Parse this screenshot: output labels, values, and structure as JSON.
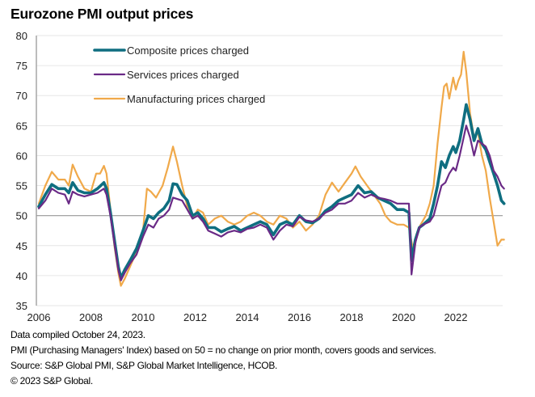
{
  "title": "Eurozone PMI output prices",
  "footnotes": [
    "Data compiled October 24, 2023.",
    "PMI (Purchasing Managers' Index) based on 50 = no change on prior month, covers goods and services.",
    "Source: S&P Global PMI, S&P Global Market Intelligence, HCOB.",
    "© 2023 S&P Global."
  ],
  "chart_data": {
    "type": "line",
    "title": "Eurozone PMI output prices",
    "xlabel": "",
    "ylabel": "",
    "ylim": [
      35,
      80
    ],
    "yticks": [
      35,
      40,
      45,
      50,
      55,
      60,
      65,
      70,
      75,
      80
    ],
    "xlim": [
      2006,
      2023.85
    ],
    "xticks": [
      "2006",
      "2008",
      "2010",
      "2012",
      "2014",
      "2016",
      "2018",
      "2020",
      "2022"
    ],
    "reference_line": 50,
    "grid": true,
    "legend": "top-left",
    "series": [
      {
        "name": "Composite prices charged",
        "color": "#0f6e80",
        "width": "thick",
        "points": [
          [
            2006.0,
            51.5
          ],
          [
            2006.25,
            53.5
          ],
          [
            2006.5,
            55.2
          ],
          [
            2006.75,
            54.5
          ],
          [
            2007.0,
            54.5
          ],
          [
            2007.15,
            53.8
          ],
          [
            2007.3,
            55.5
          ],
          [
            2007.5,
            54.2
          ],
          [
            2007.75,
            53.8
          ],
          [
            2008.0,
            53.8
          ],
          [
            2008.25,
            54.5
          ],
          [
            2008.5,
            55.5
          ],
          [
            2008.6,
            54.5
          ],
          [
            2008.75,
            50.5
          ],
          [
            2008.9,
            46
          ],
          [
            2009.05,
            41.5
          ],
          [
            2009.15,
            39.6
          ],
          [
            2009.3,
            41
          ],
          [
            2009.5,
            42.5
          ],
          [
            2009.75,
            44.5
          ],
          [
            2010.0,
            47.5
          ],
          [
            2010.2,
            50
          ],
          [
            2010.4,
            49.5
          ],
          [
            2010.6,
            50.5
          ],
          [
            2010.8,
            51.2
          ],
          [
            2011.0,
            52.5
          ],
          [
            2011.15,
            55.3
          ],
          [
            2011.3,
            55.2
          ],
          [
            2011.5,
            53.5
          ],
          [
            2011.7,
            52.5
          ],
          [
            2011.9,
            50
          ],
          [
            2012.1,
            50.5
          ],
          [
            2012.3,
            49.5
          ],
          [
            2012.5,
            48
          ],
          [
            2012.75,
            48
          ],
          [
            2013.0,
            47.3
          ],
          [
            2013.25,
            47.8
          ],
          [
            2013.5,
            48.2
          ],
          [
            2013.75,
            47.5
          ],
          [
            2014.0,
            48
          ],
          [
            2014.25,
            48.5
          ],
          [
            2014.5,
            49
          ],
          [
            2014.75,
            48.5
          ],
          [
            2015.0,
            46.8
          ],
          [
            2015.25,
            48.5
          ],
          [
            2015.5,
            49
          ],
          [
            2015.75,
            48.5
          ],
          [
            2016.0,
            50
          ],
          [
            2016.25,
            49
          ],
          [
            2016.5,
            48.8
          ],
          [
            2016.75,
            49.5
          ],
          [
            2017.0,
            50.8
          ],
          [
            2017.25,
            51.5
          ],
          [
            2017.5,
            52.5
          ],
          [
            2017.75,
            53
          ],
          [
            2018.0,
            53.5
          ],
          [
            2018.25,
            55
          ],
          [
            2018.5,
            53.8
          ],
          [
            2018.75,
            54
          ],
          [
            2019.0,
            53
          ],
          [
            2019.25,
            52.5
          ],
          [
            2019.5,
            52
          ],
          [
            2019.75,
            51
          ],
          [
            2020.0,
            51
          ],
          [
            2020.2,
            50.5
          ],
          [
            2020.3,
            42.5
          ],
          [
            2020.45,
            46
          ],
          [
            2020.6,
            48
          ],
          [
            2020.75,
            48.5
          ],
          [
            2021.0,
            49.5
          ],
          [
            2021.15,
            52
          ],
          [
            2021.3,
            55
          ],
          [
            2021.45,
            59
          ],
          [
            2021.6,
            58
          ],
          [
            2021.75,
            60
          ],
          [
            2021.9,
            61.5
          ],
          [
            2022.0,
            60.5
          ],
          [
            2022.15,
            62.5
          ],
          [
            2022.3,
            66
          ],
          [
            2022.4,
            68.5
          ],
          [
            2022.55,
            66
          ],
          [
            2022.7,
            62.5
          ],
          [
            2022.85,
            64.5
          ],
          [
            2023.0,
            62
          ],
          [
            2023.15,
            61
          ],
          [
            2023.3,
            59
          ],
          [
            2023.45,
            57
          ],
          [
            2023.6,
            55
          ],
          [
            2023.75,
            52.5
          ],
          [
            2023.85,
            52
          ]
        ]
      },
      {
        "name": "Services prices charged",
        "color": "#6a2a86",
        "width": "normal",
        "points": [
          [
            2006.0,
            51.2
          ],
          [
            2006.25,
            52.5
          ],
          [
            2006.5,
            54.5
          ],
          [
            2006.75,
            53.8
          ],
          [
            2007.0,
            53.5
          ],
          [
            2007.15,
            52
          ],
          [
            2007.3,
            54
          ],
          [
            2007.5,
            53.5
          ],
          [
            2007.75,
            53.2
          ],
          [
            2008.0,
            53.5
          ],
          [
            2008.25,
            53.8
          ],
          [
            2008.5,
            54.5
          ],
          [
            2008.6,
            53.5
          ],
          [
            2008.75,
            50
          ],
          [
            2008.9,
            45.5
          ],
          [
            2009.05,
            41
          ],
          [
            2009.15,
            39.2
          ],
          [
            2009.3,
            40.5
          ],
          [
            2009.5,
            42
          ],
          [
            2009.75,
            43.5
          ],
          [
            2010.0,
            46.5
          ],
          [
            2010.2,
            48.5
          ],
          [
            2010.4,
            48
          ],
          [
            2010.6,
            49.5
          ],
          [
            2010.8,
            50
          ],
          [
            2011.0,
            51
          ],
          [
            2011.15,
            53
          ],
          [
            2011.3,
            52.8
          ],
          [
            2011.5,
            52.5
          ],
          [
            2011.7,
            51
          ],
          [
            2011.9,
            49.5
          ],
          [
            2012.1,
            50
          ],
          [
            2012.3,
            49
          ],
          [
            2012.5,
            47.5
          ],
          [
            2012.75,
            47
          ],
          [
            2013.0,
            46.5
          ],
          [
            2013.25,
            47.2
          ],
          [
            2013.5,
            47.5
          ],
          [
            2013.75,
            47.2
          ],
          [
            2014.0,
            47.8
          ],
          [
            2014.25,
            48
          ],
          [
            2014.5,
            48.5
          ],
          [
            2014.75,
            48
          ],
          [
            2015.0,
            46
          ],
          [
            2015.25,
            47.5
          ],
          [
            2015.5,
            48.5
          ],
          [
            2015.75,
            48.2
          ],
          [
            2016.0,
            49.8
          ],
          [
            2016.25,
            49.2
          ],
          [
            2016.5,
            49
          ],
          [
            2016.75,
            49.5
          ],
          [
            2017.0,
            50.5
          ],
          [
            2017.25,
            51
          ],
          [
            2017.5,
            52
          ],
          [
            2017.75,
            52
          ],
          [
            2018.0,
            52.5
          ],
          [
            2018.25,
            53.8
          ],
          [
            2018.5,
            53
          ],
          [
            2018.75,
            53.5
          ],
          [
            2019.0,
            53
          ],
          [
            2019.25,
            52.8
          ],
          [
            2019.5,
            52.5
          ],
          [
            2019.75,
            52
          ],
          [
            2020.0,
            52
          ],
          [
            2020.2,
            52
          ],
          [
            2020.3,
            40.2
          ],
          [
            2020.45,
            45.5
          ],
          [
            2020.6,
            48
          ],
          [
            2020.75,
            48.5
          ],
          [
            2021.0,
            49
          ],
          [
            2021.15,
            50
          ],
          [
            2021.3,
            52.5
          ],
          [
            2021.45,
            55
          ],
          [
            2021.6,
            55.5
          ],
          [
            2021.75,
            57
          ],
          [
            2021.9,
            58
          ],
          [
            2022.0,
            57.5
          ],
          [
            2022.15,
            60
          ],
          [
            2022.3,
            63
          ],
          [
            2022.4,
            65
          ],
          [
            2022.55,
            63
          ],
          [
            2022.7,
            60
          ],
          [
            2022.85,
            62.5
          ],
          [
            2023.0,
            62
          ],
          [
            2023.15,
            61.5
          ],
          [
            2023.3,
            60
          ],
          [
            2023.45,
            57.5
          ],
          [
            2023.6,
            56.5
          ],
          [
            2023.75,
            55
          ],
          [
            2023.85,
            54.5
          ]
        ]
      },
      {
        "name": "Manufacturing prices charged",
        "color": "#f0a94a",
        "width": "normal",
        "points": [
          [
            2006.0,
            52
          ],
          [
            2006.25,
            55
          ],
          [
            2006.5,
            57.3
          ],
          [
            2006.75,
            56
          ],
          [
            2007.0,
            56
          ],
          [
            2007.15,
            55
          ],
          [
            2007.3,
            58.5
          ],
          [
            2007.5,
            56.5
          ],
          [
            2007.75,
            54.5
          ],
          [
            2008.0,
            54
          ],
          [
            2008.2,
            57
          ],
          [
            2008.35,
            57
          ],
          [
            2008.5,
            58.3
          ],
          [
            2008.6,
            57
          ],
          [
            2008.75,
            51
          ],
          [
            2008.9,
            45
          ],
          [
            2009.05,
            40.5
          ],
          [
            2009.15,
            38.3
          ],
          [
            2009.3,
            39.5
          ],
          [
            2009.5,
            41.5
          ],
          [
            2009.75,
            44
          ],
          [
            2010.0,
            47.5
          ],
          [
            2010.15,
            54.5
          ],
          [
            2010.3,
            54
          ],
          [
            2010.5,
            53
          ],
          [
            2010.75,
            55
          ],
          [
            2010.95,
            58
          ],
          [
            2011.15,
            61.5
          ],
          [
            2011.3,
            59
          ],
          [
            2011.5,
            55
          ],
          [
            2011.7,
            51.5
          ],
          [
            2011.9,
            49.5
          ],
          [
            2012.1,
            51
          ],
          [
            2012.3,
            50.5
          ],
          [
            2012.5,
            48.5
          ],
          [
            2012.75,
            49.5
          ],
          [
            2013.0,
            50
          ],
          [
            2013.25,
            49
          ],
          [
            2013.5,
            48.5
          ],
          [
            2013.75,
            49
          ],
          [
            2014.0,
            50
          ],
          [
            2014.25,
            50.5
          ],
          [
            2014.5,
            50
          ],
          [
            2014.75,
            49
          ],
          [
            2015.0,
            48.5
          ],
          [
            2015.25,
            50
          ],
          [
            2015.5,
            49.5
          ],
          [
            2015.75,
            48
          ],
          [
            2016.0,
            49
          ],
          [
            2016.25,
            47.5
          ],
          [
            2016.5,
            48.5
          ],
          [
            2016.75,
            50
          ],
          [
            2017.0,
            53.5
          ],
          [
            2017.25,
            55.5
          ],
          [
            2017.5,
            54
          ],
          [
            2017.75,
            55.5
          ],
          [
            2018.0,
            57
          ],
          [
            2018.15,
            58.2
          ],
          [
            2018.35,
            56.5
          ],
          [
            2018.6,
            55
          ],
          [
            2018.85,
            53.5
          ],
          [
            2019.1,
            52
          ],
          [
            2019.3,
            50
          ],
          [
            2019.5,
            49
          ],
          [
            2019.75,
            48.5
          ],
          [
            2020.0,
            48.5
          ],
          [
            2020.2,
            48
          ],
          [
            2020.35,
            44.5
          ],
          [
            2020.5,
            47
          ],
          [
            2020.65,
            48.5
          ],
          [
            2020.85,
            50
          ],
          [
            2021.0,
            52
          ],
          [
            2021.15,
            55
          ],
          [
            2021.3,
            62
          ],
          [
            2021.45,
            68
          ],
          [
            2021.55,
            71.5
          ],
          [
            2021.65,
            72
          ],
          [
            2021.75,
            69.5
          ],
          [
            2021.9,
            73
          ],
          [
            2022.0,
            71
          ],
          [
            2022.1,
            72.5
          ],
          [
            2022.2,
            73.5
          ],
          [
            2022.3,
            77.3
          ],
          [
            2022.4,
            74
          ],
          [
            2022.55,
            67
          ],
          [
            2022.7,
            63
          ],
          [
            2022.85,
            64
          ],
          [
            2023.0,
            60
          ],
          [
            2023.15,
            57.5
          ],
          [
            2023.3,
            53
          ],
          [
            2023.45,
            49
          ],
          [
            2023.6,
            45
          ],
          [
            2023.75,
            46
          ],
          [
            2023.85,
            46
          ]
        ]
      }
    ]
  }
}
